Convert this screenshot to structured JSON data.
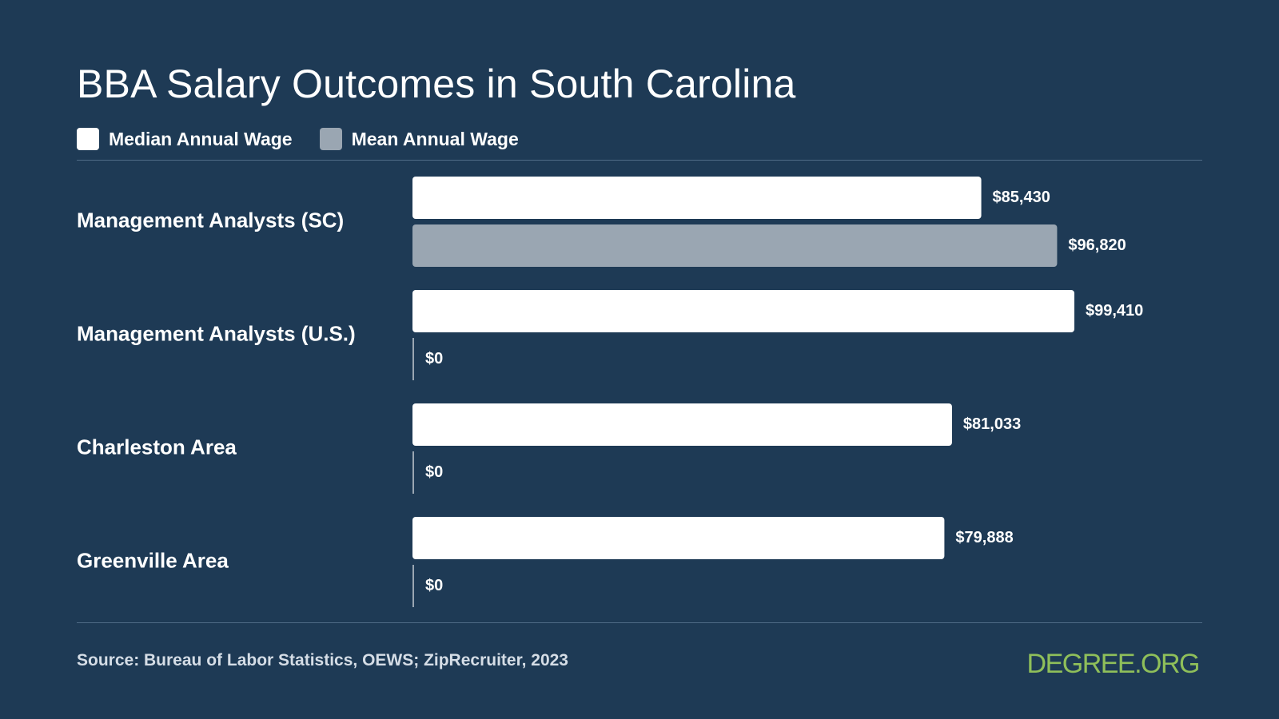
{
  "colors": {
    "background": "#1e3a55",
    "median": "#ffffff",
    "mean": "#9aa6b2",
    "zero_line": "#9aa6b2",
    "brand": "#8fbf5a"
  },
  "source": "Source: Bureau of Labor Statistics, OEWS; ZipRecruiter, 2023",
  "brand": "DEGREE.ORG",
  "chart_data": {
    "type": "bar",
    "orientation": "horizontal",
    "title": "BBA Salary Outcomes in South Carolina",
    "legend_position": "top-left",
    "grid": false,
    "categories": [
      "Management Analysts (SC)",
      "Management Analysts (U.S.)",
      "Charleston Area",
      "Greenville Area"
    ],
    "series": [
      {
        "name": "Median Annual Wage",
        "color": "#ffffff",
        "values": [
          85430,
          99410,
          81033,
          79888
        ],
        "labels": [
          "$85,430",
          "$99,410",
          "$81,033",
          "$79,888"
        ]
      },
      {
        "name": "Mean Annual Wage",
        "color": "#9aa6b2",
        "values": [
          96820,
          0,
          0,
          0
        ],
        "labels": [
          "$96,820",
          "$0",
          "$0",
          "$0"
        ]
      }
    ],
    "xlim": [
      0,
      99410
    ]
  }
}
